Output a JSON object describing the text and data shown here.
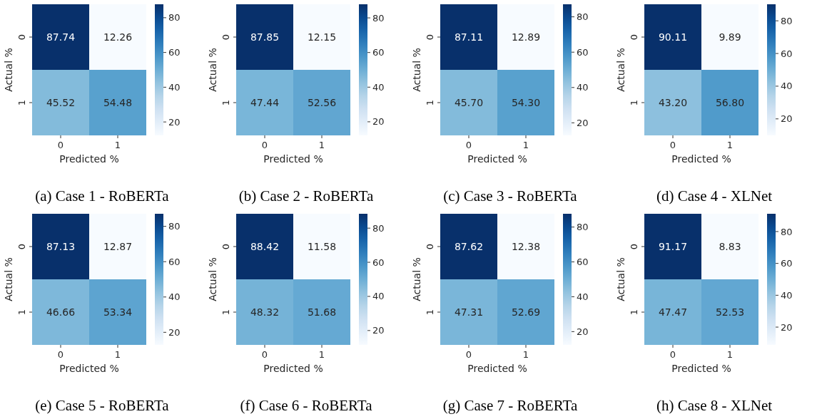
{
  "chart_data": [
    {
      "type": "heatmap",
      "title": "(a) Case 1 - RoBERTa",
      "xlabel": "Predicted %",
      "ylabel": "Actual %",
      "categories": [
        "0",
        "1"
      ],
      "y_categories": [
        "0",
        "1"
      ],
      "cells": [
        [
          87.74,
          12.26
        ],
        [
          45.52,
          54.48
        ]
      ],
      "cell_labels": [
        [
          "87.74",
          "12.26"
        ],
        [
          "45.52",
          "54.48"
        ]
      ],
      "clim": [
        12.26,
        87.74
      ],
      "cticks": [
        20,
        40,
        60,
        80
      ]
    },
    {
      "type": "heatmap",
      "title": "(b) Case 2 - RoBERTa",
      "xlabel": "Predicted %",
      "ylabel": "Actual %",
      "categories": [
        "0",
        "1"
      ],
      "y_categories": [
        "0",
        "1"
      ],
      "cells": [
        [
          87.85,
          12.15
        ],
        [
          47.44,
          52.56
        ]
      ],
      "cell_labels": [
        [
          "87.85",
          "12.15"
        ],
        [
          "47.44",
          "52.56"
        ]
      ],
      "clim": [
        12.15,
        87.85
      ],
      "cticks": [
        20,
        40,
        60,
        80
      ]
    },
    {
      "type": "heatmap",
      "title": "(c) Case 3 - RoBERTa",
      "xlabel": "Predicted %",
      "ylabel": "Actual %",
      "categories": [
        "0",
        "1"
      ],
      "y_categories": [
        "0",
        "1"
      ],
      "cells": [
        [
          87.11,
          12.89
        ],
        [
          45.7,
          54.3
        ]
      ],
      "cell_labels": [
        [
          "87.11",
          "12.89"
        ],
        [
          "45.70",
          "54.30"
        ]
      ],
      "clim": [
        12.89,
        87.11
      ],
      "cticks": [
        20,
        40,
        60,
        80
      ]
    },
    {
      "type": "heatmap",
      "title": "(d) Case 4 - XLNet",
      "xlabel": "Predicted %",
      "ylabel": "Actual %",
      "categories": [
        "0",
        "1"
      ],
      "y_categories": [
        "0",
        "1"
      ],
      "cells": [
        [
          90.11,
          9.89
        ],
        [
          43.2,
          56.8
        ]
      ],
      "cell_labels": [
        [
          "90.11",
          "9.89"
        ],
        [
          "43.20",
          "56.80"
        ]
      ],
      "clim": [
        9.89,
        90.11
      ],
      "cticks": [
        20,
        40,
        60,
        80
      ]
    },
    {
      "type": "heatmap",
      "title": "(e) Case 5 - RoBERTa",
      "xlabel": "Predicted %",
      "ylabel": "Actual %",
      "categories": [
        "0",
        "1"
      ],
      "y_categories": [
        "0",
        "1"
      ],
      "cells": [
        [
          87.13,
          12.87
        ],
        [
          46.66,
          53.34
        ]
      ],
      "cell_labels": [
        [
          "87.13",
          "12.87"
        ],
        [
          "46.66",
          "53.34"
        ]
      ],
      "clim": [
        12.87,
        87.13
      ],
      "cticks": [
        20,
        40,
        60,
        80
      ]
    },
    {
      "type": "heatmap",
      "title": "(f) Case 6 - RoBERTa",
      "xlabel": "Predicted %",
      "ylabel": "Actual %",
      "categories": [
        "0",
        "1"
      ],
      "y_categories": [
        "0",
        "1"
      ],
      "cells": [
        [
          88.42,
          11.58
        ],
        [
          48.32,
          51.68
        ]
      ],
      "cell_labels": [
        [
          "88.42",
          "11.58"
        ],
        [
          "48.32",
          "51.68"
        ]
      ],
      "clim": [
        11.58,
        88.42
      ],
      "cticks": [
        20,
        40,
        60,
        80
      ]
    },
    {
      "type": "heatmap",
      "title": "(g) Case 7 - RoBERTa",
      "xlabel": "Predicted %",
      "ylabel": "Actual %",
      "categories": [
        "0",
        "1"
      ],
      "y_categories": [
        "0",
        "1"
      ],
      "cells": [
        [
          87.62,
          12.38
        ],
        [
          47.31,
          52.69
        ]
      ],
      "cell_labels": [
        [
          "87.62",
          "12.38"
        ],
        [
          "47.31",
          "52.69"
        ]
      ],
      "clim": [
        12.38,
        87.62
      ],
      "cticks": [
        20,
        40,
        60,
        80
      ]
    },
    {
      "type": "heatmap",
      "title": "(h) Case 8 - XLNet",
      "xlabel": "Predicted %",
      "ylabel": "Actual %",
      "categories": [
        "0",
        "1"
      ],
      "y_categories": [
        "0",
        "1"
      ],
      "cells": [
        [
          91.17,
          8.83
        ],
        [
          47.47,
          52.53
        ]
      ],
      "cell_labels": [
        [
          "91.17",
          "8.83"
        ],
        [
          "47.47",
          "52.53"
        ]
      ],
      "clim": [
        8.83,
        91.17
      ],
      "cticks": [
        20,
        40,
        60,
        80
      ]
    }
  ]
}
